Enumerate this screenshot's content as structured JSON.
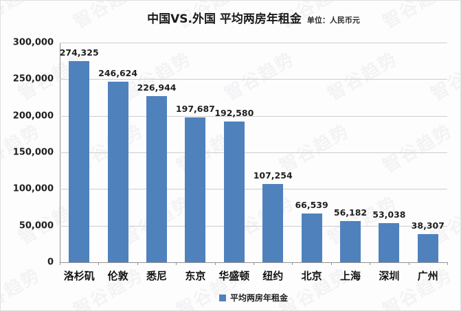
{
  "title": "中国VS.外国 平均两房年租金",
  "subtitle": "单位：人民币元",
  "watermark_text": "智谷趋势",
  "legend": {
    "label": "平均两房年租金",
    "color": "#4f81bd"
  },
  "colors": {
    "bar": "#4f81bd",
    "gridline": "#cdcdcd",
    "axis": "#8f8f8f",
    "text": "#1f1f1f",
    "background": "#fdfdfd"
  },
  "chart_data": {
    "type": "bar",
    "title": "中国VS.外国 平均两房年租金",
    "subtitle": "单位：人民币元",
    "categories": [
      "洛杉矶",
      "伦敦",
      "悉尼",
      "东京",
      "华盛顿",
      "纽约",
      "北京",
      "上海",
      "深圳",
      "广州"
    ],
    "values": [
      274325,
      246624,
      226944,
      197687,
      192580,
      107254,
      66539,
      56182,
      53038,
      38307
    ],
    "value_labels": [
      "274,325",
      "246,624",
      "226,944",
      "197,687",
      "192,580",
      "107,254",
      "66,539",
      "56,182",
      "53,038",
      "38,307"
    ],
    "xlabel": "",
    "ylabel": "",
    "ylim": [
      0,
      300000
    ],
    "ytick_interval": 50000,
    "ytick_labels": [
      "0",
      "50,000",
      "100,000",
      "150,000",
      "200,000",
      "250,000",
      "300,000"
    ],
    "grid": true,
    "legend_entries": [
      "平均两房年租金"
    ],
    "legend_position": "bottom"
  }
}
